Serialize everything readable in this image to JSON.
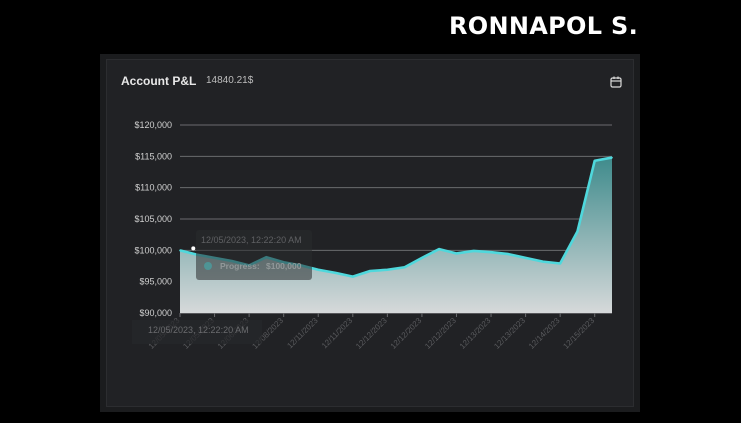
{
  "header": {
    "brand": "RONNAPOL S."
  },
  "card": {
    "title": "Account P&L",
    "value": "14840.21$",
    "calendar_icon": "calendar-icon"
  },
  "tooltip": {
    "date": "12/05/2023, 12:22:20 AM",
    "label": "Progress:",
    "value": "$100,000"
  },
  "x_hover_label": "12/05/2023, 12:22:20 AM",
  "colors": {
    "line": "#4fd8dc",
    "fill_top": "#3f8b8c",
    "fill_bottom": "#d6d9da",
    "grid": "#6a6b6e"
  },
  "chart_data": {
    "type": "area",
    "x": [
      "12/05/2023",
      "12/05/2023",
      "12/05/2023",
      "12/06/2023",
      "12/06/2023",
      "12/08/2023",
      "12/08/2023",
      "12/08/2023",
      "12/11/2023",
      "12/11/2023",
      "12/11/2023",
      "12/12/2023",
      "12/12/2023",
      "12/12/2023",
      "12/12/2023",
      "12/12/2023",
      "12/12/2023",
      "12/12/2023",
      "12/13/2023",
      "12/13/2023",
      "12/13/2023",
      "12/14/2023",
      "12/14/2023",
      "12/15/2023",
      "12/15/2023",
      "12/15/2023"
    ],
    "values": [
      100000,
      99300,
      98800,
      98300,
      97600,
      98900,
      98100,
      97600,
      96900,
      96400,
      95800,
      96700,
      96900,
      97300,
      98800,
      100200,
      99500,
      99900,
      99700,
      99400,
      98800,
      98200,
      97900,
      103000,
      114300,
      114800
    ],
    "ylim": [
      90000,
      120000
    ],
    "yticks": [
      "$90,000",
      "$95,000",
      "$100,000",
      "$105,000",
      "$110,000",
      "$115,000",
      "$120,000"
    ],
    "grid": true
  }
}
